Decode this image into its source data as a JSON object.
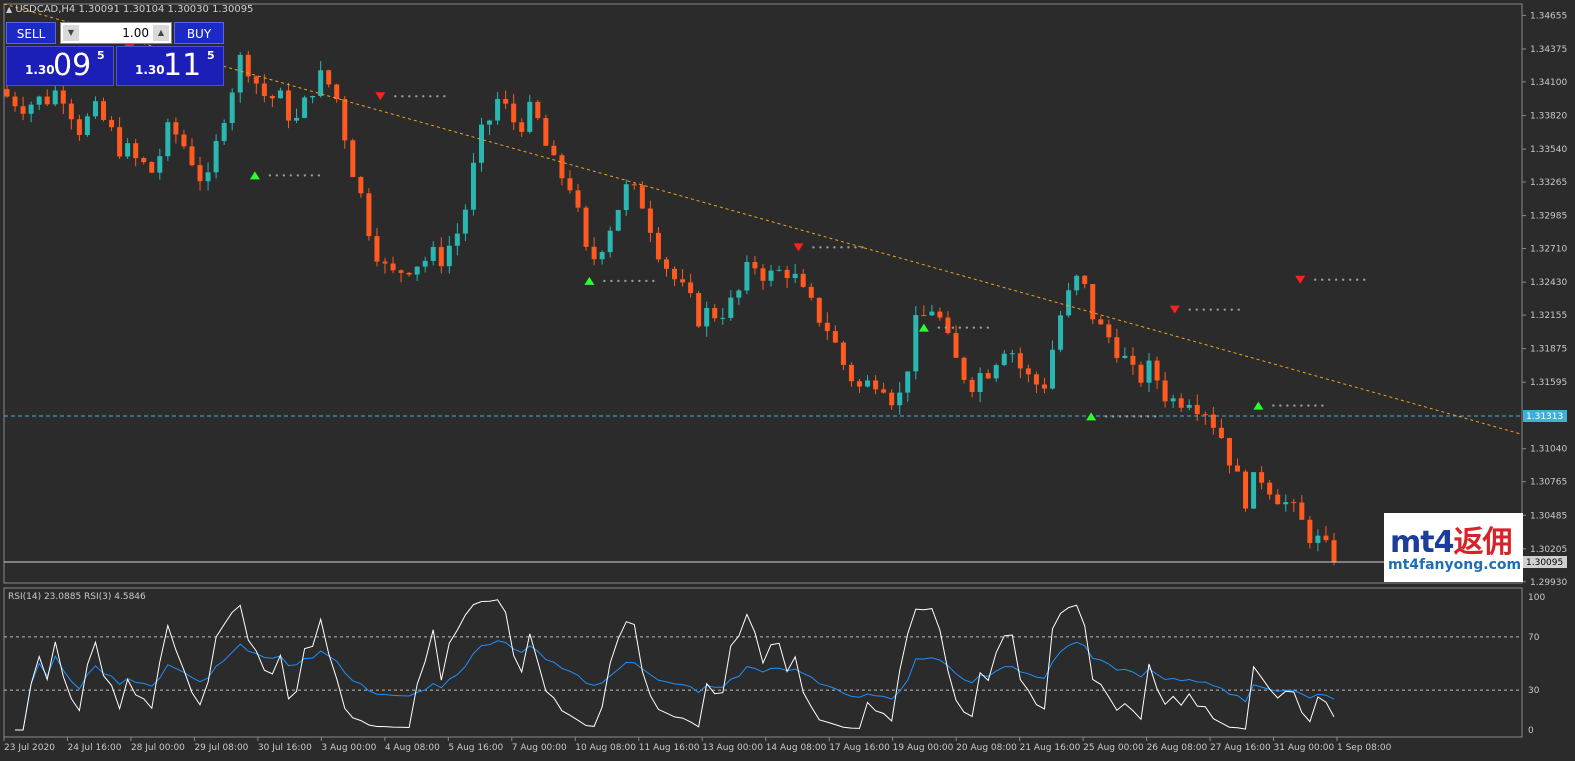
{
  "header": {
    "info": "USDCAD,H4  1.30091 1.30104 1.30030 1.30095"
  },
  "trade_panel": {
    "sell_label": "SELL",
    "buy_label": "BUY",
    "lot_value": "1.00",
    "sell_price": {
      "prefix": "1.30",
      "big": "09",
      "sup": "5"
    },
    "buy_price": {
      "prefix": "1.30",
      "big": "11",
      "sup": "5"
    }
  },
  "logo": {
    "line1_prefix": "mt4",
    "line1_suffix": "返佣",
    "line2": "mt4fanyong.com"
  },
  "colors": {
    "bull": "#2ab7b1",
    "bear": "#ff5a1f",
    "background": "#2b2b2b",
    "grid": "#3a3a3a",
    "trend": "#f0a020",
    "level": "#3fb0d8",
    "rsi14": "#1e90ff",
    "rsi3": "#ffffff",
    "arrow_up": "#2cff2c",
    "arrow_down": "#ff2020",
    "dots": "#9a9a9a"
  },
  "chart_data": {
    "type": "candlestick",
    "symbol": "USDCAD",
    "timeframe": "H4",
    "ylim": [
      1.2992,
      1.3475
    ],
    "y_ticks": [
      "1.34655",
      "1.34375",
      "1.34100",
      "1.33820",
      "1.33540",
      "1.33265",
      "1.32985",
      "1.32710",
      "1.32430",
      "1.32155",
      "1.31875",
      "1.31595",
      "1.31040",
      "1.30765",
      "1.30485",
      "1.30205",
      "1.29930"
    ],
    "x_labels": [
      "23 Jul 2020",
      "24 Jul 16:00",
      "28 Jul 00:00",
      "29 Jul 08:00",
      "30 Jul 16:00",
      "3 Aug 00:00",
      "4 Aug 08:00",
      "5 Aug 16:00",
      "7 Aug 00:00",
      "10 Aug 08:00",
      "11 Aug 16:00",
      "13 Aug 00:00",
      "14 Aug 08:00",
      "17 Aug 16:00",
      "19 Aug 00:00",
      "20 Aug 08:00",
      "21 Aug 16:00",
      "25 Aug 00:00",
      "26 Aug 08:00",
      "27 Aug 16:00",
      "31 Aug 00:00",
      "1 Sep 08:00"
    ],
    "close_path": [
      1.3398,
      1.3392,
      1.3395,
      1.3405,
      1.3372,
      1.3385,
      1.336,
      1.3345,
      1.3335,
      1.3372,
      1.3352,
      1.332,
      1.339,
      1.3435,
      1.34,
      1.3395,
      1.3375,
      1.3415,
      1.3405,
      1.334,
      1.3285,
      1.3245,
      1.3258,
      1.3262,
      1.3265,
      1.329,
      1.336,
      1.3395,
      1.3375,
      1.3385,
      1.334,
      1.3325,
      1.3255,
      1.3285,
      1.332,
      1.331,
      1.3265,
      1.3238,
      1.3215,
      1.3218,
      1.3225,
      1.326,
      1.3247,
      1.3255,
      1.3225,
      1.321,
      1.3175,
      1.3152,
      1.3168,
      1.314,
      1.3205,
      1.3225,
      1.318,
      1.316,
      1.3172,
      1.3195,
      1.3164,
      1.3155,
      1.3218,
      1.3248,
      1.3205,
      1.3192,
      1.3162,
      1.317,
      1.3143,
      1.315,
      1.3137,
      1.311,
      1.3062,
      1.3082,
      1.3065,
      1.3045,
      1.3028,
      1.3009
    ],
    "current_price": "1.30095",
    "level_price": "1.31313",
    "level_value": 1.31313,
    "current_value": 1.30095,
    "arrows_down": [
      [
        3,
        1.3438
      ],
      [
        9,
        1.3398
      ],
      [
        19,
        1.3272
      ],
      [
        28,
        1.322
      ],
      [
        31,
        1.3245
      ]
    ],
    "arrows_up": [
      [
        6,
        1.3332
      ],
      [
        14,
        1.3244
      ],
      [
        22,
        1.3205
      ],
      [
        26,
        1.3131
      ],
      [
        30,
        1.314
      ]
    ],
    "trendline": {
      "from": [
        0,
        1.3475
      ],
      "to": [
        1.0,
        1.3116
      ]
    },
    "rsi": {
      "label": "RSI(14) 23.0885  RSI(3) 4.5846",
      "ylim": [
        0,
        100
      ],
      "levels": [
        30,
        70
      ],
      "y_ticks": [
        "100",
        "70",
        "30",
        "0"
      ],
      "rsi14_last": 23.0885,
      "rsi3_last": 4.5846
    }
  }
}
